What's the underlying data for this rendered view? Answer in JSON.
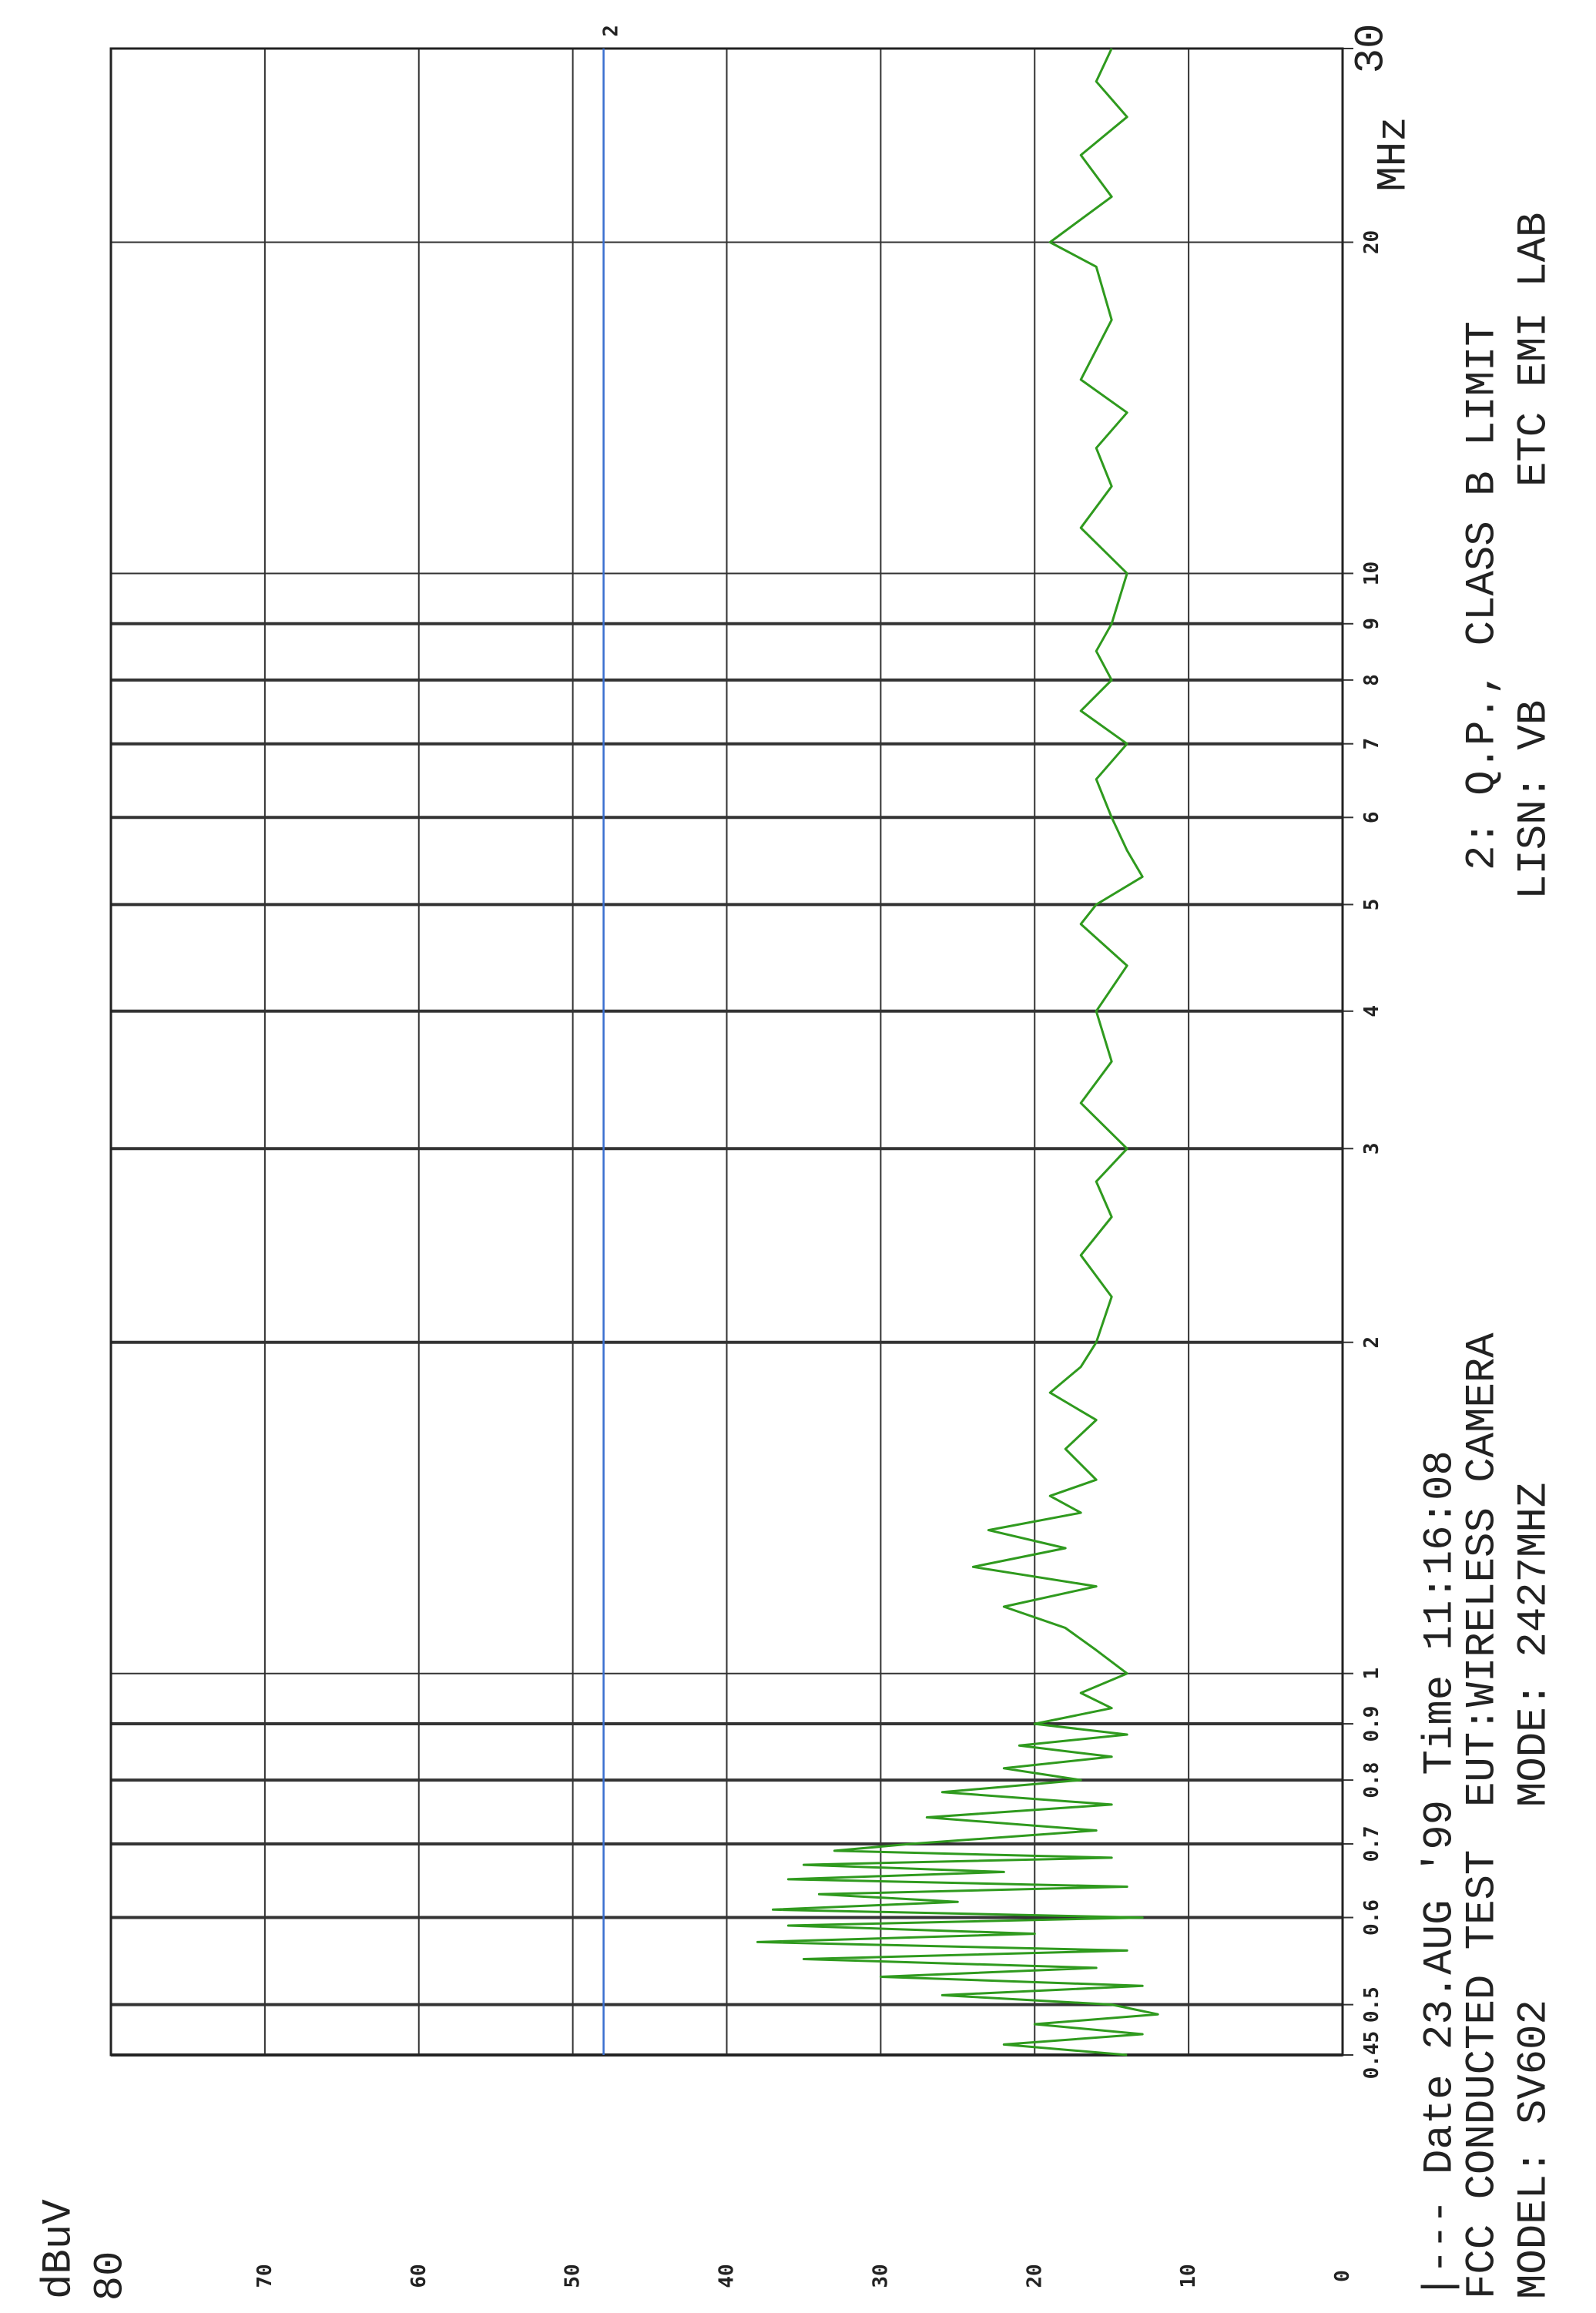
{
  "chart_data": {
    "type": "line",
    "y_label": "dBuV",
    "x_unit": "MHz",
    "log_x": true,
    "grid": true,
    "xlim": [
      0.45,
      30
    ],
    "ylim": [
      0,
      80
    ],
    "xticks": [
      0.45,
      0.5,
      0.6,
      0.7,
      0.8,
      0.9,
      1,
      2,
      3,
      4,
      5,
      6,
      7,
      8,
      9,
      10,
      20,
      30
    ],
    "yticks": [
      0,
      10,
      20,
      30,
      40,
      50,
      60,
      70,
      80
    ],
    "notes": [
      "|--- Date 23.AUG '99   Time 11:16:08",
      "FCC CONDUCTED TEST",
      "EUT:WIRELESS CAMERA",
      "MODEL: SV602",
      "MODE: 2427MHZ",
      "2: Q.P., CLASS B  LIMIT",
      "LISN:  VB",
      "ETC EMI LAB"
    ],
    "series": [
      {
        "color": "#2f9a1e",
        "x": [
          0.45,
          0.46,
          0.47,
          0.48,
          0.49,
          0.5,
          0.51,
          0.52,
          0.53,
          0.54,
          0.55,
          0.56,
          0.57,
          0.58,
          0.59,
          0.6,
          0.61,
          0.62,
          0.63,
          0.64,
          0.65,
          0.66,
          0.67,
          0.68,
          0.69,
          0.7,
          0.72,
          0.74,
          0.76,
          0.78,
          0.8,
          0.82,
          0.84,
          0.86,
          0.88,
          0.9,
          0.93,
          0.96,
          1.0,
          1.05,
          1.1,
          1.15,
          1.2,
          1.25,
          1.3,
          1.35,
          1.4,
          1.45,
          1.5,
          1.6,
          1.7,
          1.8,
          1.9,
          2.0,
          2.2,
          2.4,
          2.6,
          2.8,
          3.0,
          3.3,
          3.6,
          4.0,
          4.4,
          4.8,
          5.0,
          5.3,
          5.6,
          6.0,
          6.5,
          7.0,
          7.5,
          8.0,
          8.5,
          9.0,
          10,
          11,
          12,
          13,
          14,
          15,
          17,
          19,
          20,
          22,
          24,
          26,
          28,
          30
        ],
        "values": [
          14,
          22,
          13,
          20,
          12,
          15,
          26,
          13,
          30,
          16,
          35,
          14,
          38,
          20,
          36,
          13,
          37,
          25,
          34,
          14,
          36,
          22,
          35,
          15,
          33,
          28,
          16,
          27,
          15,
          26,
          17,
          22,
          15,
          21,
          14,
          20,
          15,
          17,
          14,
          16,
          18,
          22,
          16,
          24,
          18,
          23,
          17,
          19,
          16,
          18,
          16,
          19,
          17,
          16,
          15,
          17,
          15,
          16,
          14,
          17,
          15,
          16,
          14,
          17,
          16,
          13,
          14,
          15,
          16,
          14,
          17,
          15,
          16,
          15,
          14,
          17,
          15,
          16,
          14,
          17,
          15,
          16,
          19,
          15,
          17,
          14,
          16,
          15
        ]
      },
      {
        "name": "2",
        "color": "#3a6fd0",
        "x": [
          0.45,
          30
        ],
        "values": [
          48,
          48
        ]
      }
    ]
  }
}
